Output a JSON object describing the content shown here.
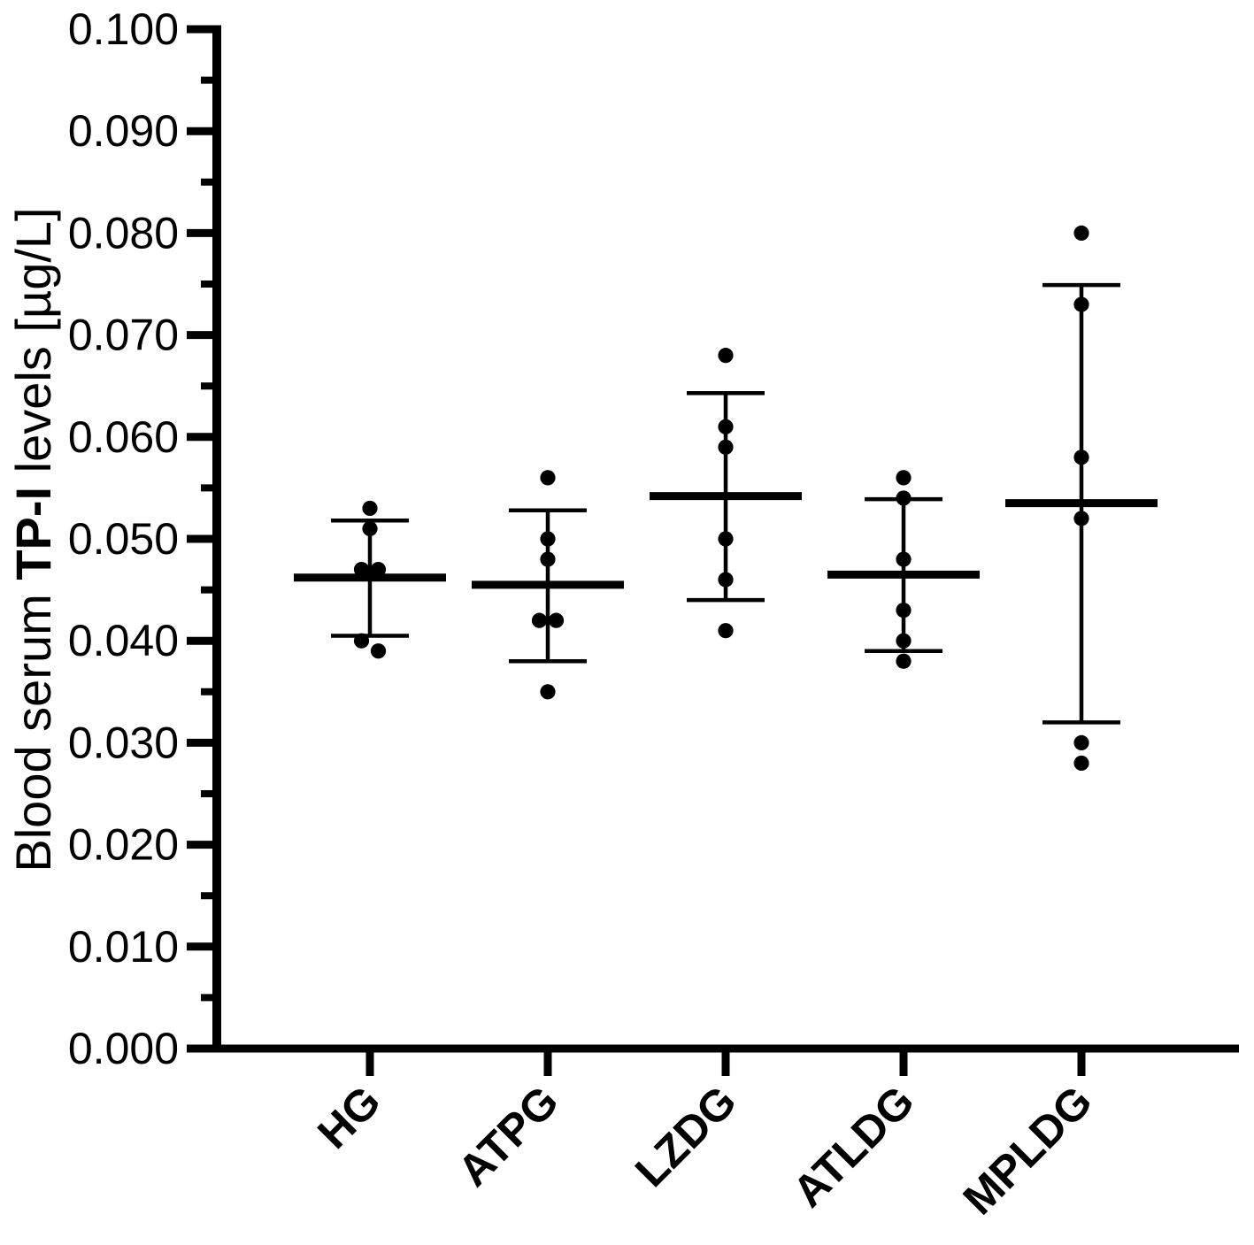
{
  "chart_data": {
    "type": "scatter",
    "subtype": "column-scatter-with-mean-and-sd-error-bars",
    "title": "",
    "xlabel": "",
    "ylabel": "Blood serum TP-I levels [µg/L]",
    "ylabel_parts": [
      "Blood serum ",
      "TP-I",
      " levels [µg/L]"
    ],
    "ylabel_bold_part": "TP-I",
    "ylim": [
      0.0,
      0.1
    ],
    "ytick_interval": 0.01,
    "minor_tick_interval": 0.005,
    "y_ticks": [
      "0.100",
      "0.090",
      "0.080",
      "0.070",
      "0.060",
      "0.050",
      "0.040",
      "0.030",
      "0.020",
      "0.010",
      "0.000"
    ],
    "grid": false,
    "legend": false,
    "marker_color": "#000000",
    "categories": [
      "HG",
      "ATPG",
      "LZDG",
      "ATLDG",
      "MPLDG"
    ],
    "groups": [
      {
        "name": "HG",
        "points": [
          0.053,
          0.051,
          0.047,
          0.047,
          0.04,
          0.039
        ],
        "jitter": [
          0,
          0,
          -1,
          1,
          -1,
          1
        ],
        "mean": 0.0462,
        "err_low": 0.0405,
        "err_high": 0.0518
      },
      {
        "name": "ATPG",
        "points": [
          0.056,
          0.05,
          0.048,
          0.042,
          0.042,
          0.035
        ],
        "jitter": [
          0,
          0,
          0,
          -1,
          1,
          0
        ],
        "mean": 0.0455,
        "err_low": 0.038,
        "err_high": 0.0528
      },
      {
        "name": "LZDG",
        "points": [
          0.068,
          0.061,
          0.059,
          0.05,
          0.046,
          0.041
        ],
        "jitter": [
          0,
          0,
          0,
          0,
          0,
          0
        ],
        "mean": 0.0542,
        "err_low": 0.044,
        "err_high": 0.0643
      },
      {
        "name": "ATLDG",
        "points": [
          0.056,
          0.054,
          0.048,
          0.043,
          0.04,
          0.038
        ],
        "jitter": [
          0,
          0,
          0,
          0,
          0,
          0
        ],
        "mean": 0.0465,
        "err_low": 0.039,
        "err_high": 0.0539
      },
      {
        "name": "MPLDG",
        "points": [
          0.08,
          0.073,
          0.058,
          0.052,
          0.03,
          0.028
        ],
        "jitter": [
          0,
          0,
          0,
          0,
          0,
          0
        ],
        "mean": 0.0535,
        "err_low": 0.032,
        "err_high": 0.0749
      }
    ]
  }
}
